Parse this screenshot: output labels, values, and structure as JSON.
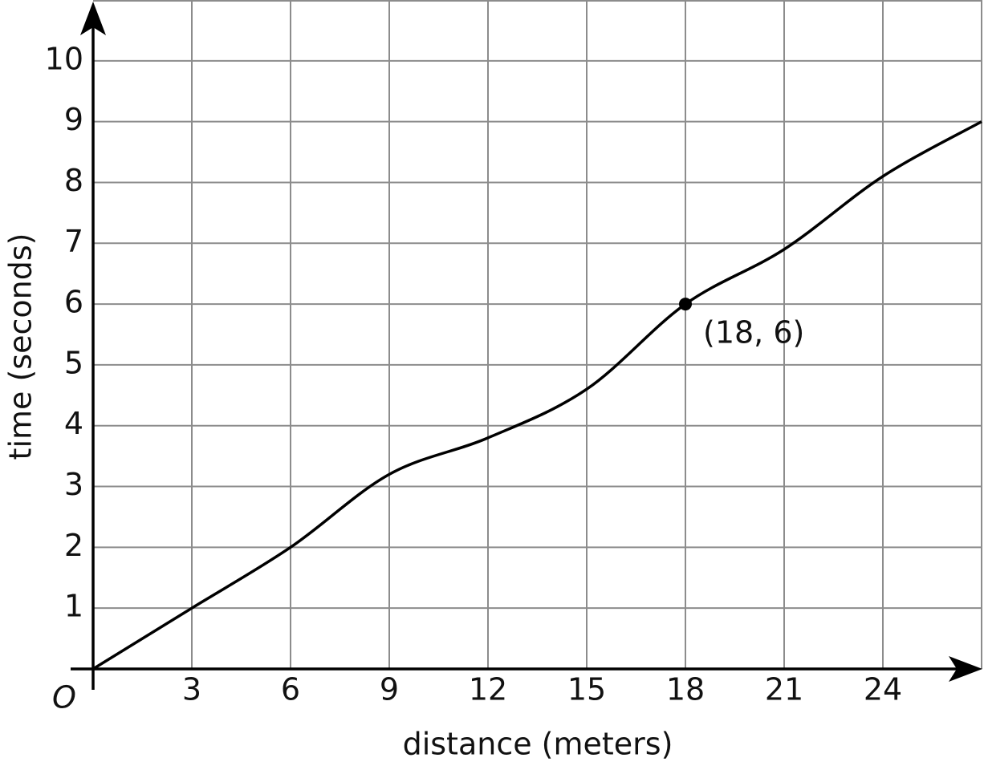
{
  "chart_data": {
    "type": "line",
    "x_label": "distance (meters)",
    "y_label": "time (seconds)",
    "origin_label": "O",
    "x": [
      0,
      3,
      6,
      9,
      12,
      15,
      18,
      21,
      24,
      27
    ],
    "series": [
      {
        "color": "#000000",
        "values": [
          0,
          1,
          2,
          3.2,
          3.8,
          4.6,
          6,
          6.9,
          8.1,
          9
        ]
      }
    ],
    "xlim": [
      0,
      27
    ],
    "ylim": [
      0,
      11
    ],
    "xticks": [
      3,
      6,
      9,
      12,
      15,
      18,
      21,
      24
    ],
    "yticks": [
      1,
      2,
      3,
      4,
      5,
      6,
      7,
      8,
      9,
      10
    ],
    "grid": true,
    "annotations": [
      {
        "x": 18,
        "y": 6,
        "label": "(18, 6)"
      }
    ]
  }
}
